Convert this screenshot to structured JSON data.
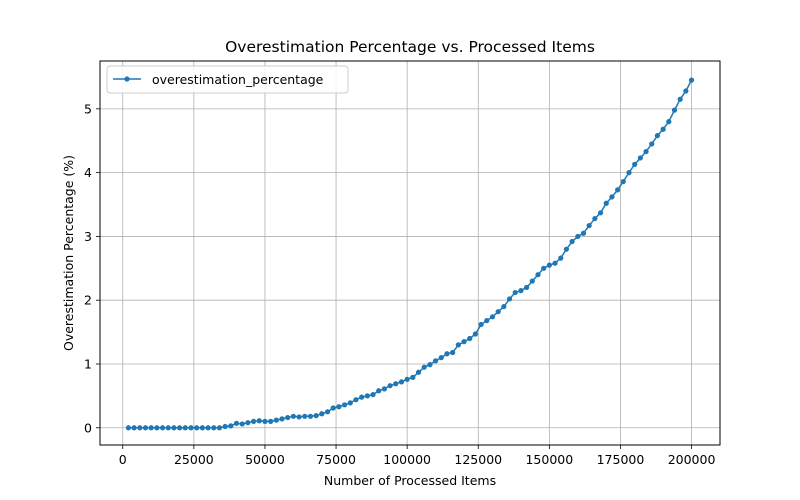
{
  "chart_data": {
    "type": "line",
    "title": "Overestimation Percentage vs. Processed Items",
    "xlabel": "Number of Processed Items",
    "ylabel": "Overestimation Percentage (%)",
    "xlim": [
      -8000,
      210000
    ],
    "ylim": [
      -0.27,
      5.75
    ],
    "xticks": [
      0,
      25000,
      50000,
      75000,
      100000,
      125000,
      150000,
      175000,
      200000
    ],
    "xtick_labels": [
      "0",
      "25000",
      "50000",
      "75000",
      "100000",
      "125000",
      "150000",
      "175000",
      "200000"
    ],
    "yticks": [
      0,
      1,
      2,
      3,
      4,
      5
    ],
    "ytick_labels": [
      "0",
      "1",
      "2",
      "3",
      "4",
      "5"
    ],
    "grid": true,
    "legend_position": "top-left",
    "colors": {
      "series": "#1f77b4"
    },
    "series": [
      {
        "name": "overestimation_percentage",
        "x": [
          2000,
          4000,
          6000,
          8000,
          10000,
          12000,
          14000,
          16000,
          18000,
          20000,
          22000,
          24000,
          26000,
          28000,
          30000,
          32000,
          34000,
          36000,
          38000,
          40000,
          42000,
          44000,
          46000,
          48000,
          50000,
          52000,
          54000,
          56000,
          58000,
          60000,
          62000,
          64000,
          66000,
          68000,
          70000,
          72000,
          74000,
          76000,
          78000,
          80000,
          82000,
          84000,
          86000,
          88000,
          90000,
          92000,
          94000,
          96000,
          98000,
          100000,
          102000,
          104000,
          106000,
          108000,
          110000,
          112000,
          114000,
          116000,
          118000,
          120000,
          122000,
          124000,
          126000,
          128000,
          130000,
          132000,
          134000,
          136000,
          138000,
          140000,
          142000,
          144000,
          146000,
          148000,
          150000,
          152000,
          154000,
          156000,
          158000,
          160000,
          162000,
          164000,
          166000,
          168000,
          170000,
          172000,
          174000,
          176000,
          178000,
          180000,
          182000,
          184000,
          186000,
          188000,
          190000,
          192000,
          194000,
          196000,
          198000,
          200000
        ],
        "values": [
          0,
          0,
          0,
          0,
          0,
          0,
          0,
          0,
          0,
          0,
          0,
          0,
          0,
          0,
          0,
          0,
          0,
          0.02,
          0.03,
          0.07,
          0.06,
          0.08,
          0.1,
          0.11,
          0.1,
          0.1,
          0.12,
          0.14,
          0.16,
          0.18,
          0.17,
          0.18,
          0.18,
          0.19,
          0.22,
          0.25,
          0.31,
          0.33,
          0.36,
          0.39,
          0.44,
          0.48,
          0.5,
          0.52,
          0.58,
          0.61,
          0.66,
          0.69,
          0.72,
          0.76,
          0.79,
          0.87,
          0.95,
          0.99,
          1.05,
          1.1,
          1.16,
          1.18,
          1.3,
          1.35,
          1.4,
          1.47,
          1.62,
          1.68,
          1.74,
          1.82,
          1.9,
          2.02,
          2.12,
          2.15,
          2.2,
          2.3,
          2.4,
          2.5,
          2.55,
          2.58,
          2.66,
          2.8,
          2.92,
          3.0,
          3.05,
          3.17,
          3.28,
          3.37,
          3.52,
          3.62,
          3.73,
          3.86,
          4.0,
          4.13,
          4.23,
          4.33,
          4.45,
          4.58,
          4.68,
          4.8,
          4.98,
          5.15,
          5.28,
          5.45
        ]
      }
    ]
  }
}
